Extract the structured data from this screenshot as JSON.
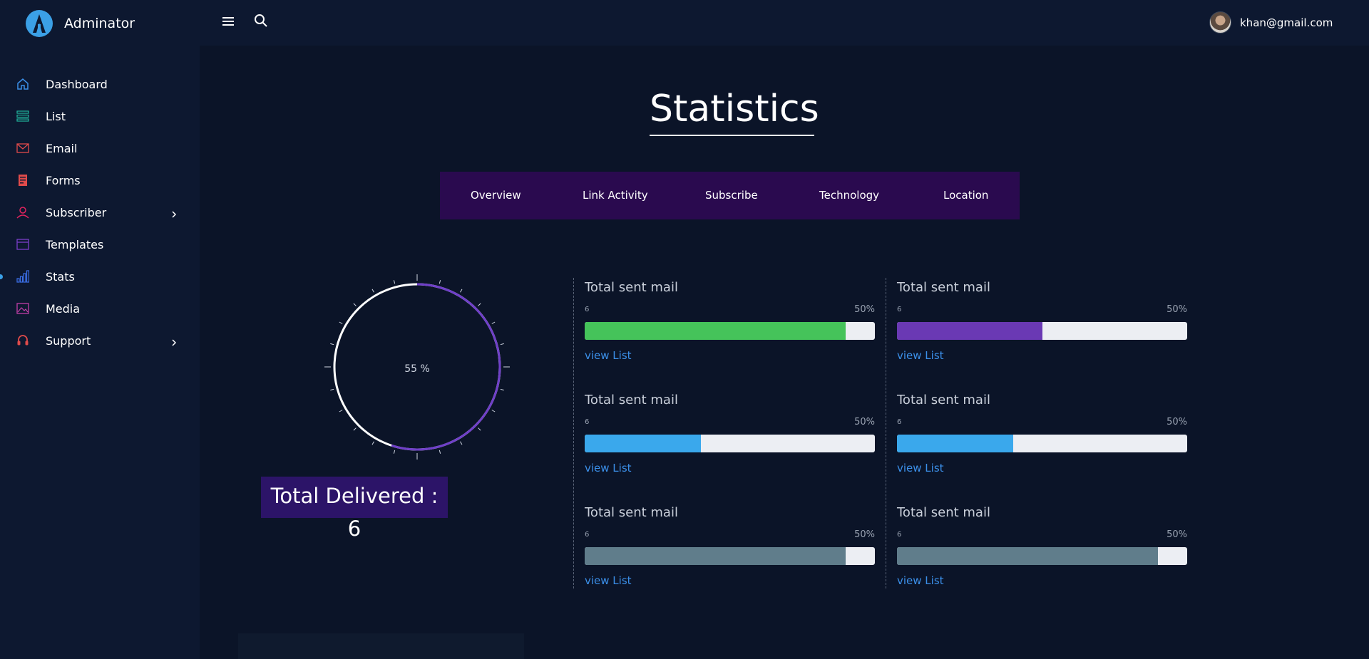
{
  "brand": {
    "name": "Adminator",
    "accent": "#3ba0e6"
  },
  "header": {
    "user_email": "khan@gmail.com"
  },
  "sidebar": {
    "items": [
      {
        "label": "Dashboard",
        "icon": "home-icon",
        "color": "#3b8fe8"
      },
      {
        "label": "List",
        "icon": "list-icon",
        "color": "#1fb59d"
      },
      {
        "label": "Email",
        "icon": "mail-icon",
        "color": "#e04b4b"
      },
      {
        "label": "Forms",
        "icon": "form-icon",
        "color": "#e04b4b"
      },
      {
        "label": "Subscriber",
        "icon": "user-icon",
        "color": "#e0245e",
        "has_submenu": true
      },
      {
        "label": "Templates",
        "icon": "window-icon",
        "color": "#7a3fc9"
      },
      {
        "label": "Stats",
        "icon": "bar-chart-icon",
        "color": "#3b6fe8",
        "active": true
      },
      {
        "label": "Media",
        "icon": "image-icon",
        "color": "#c23fa8"
      },
      {
        "label": "Support",
        "icon": "headset-icon",
        "color": "#e04b4b",
        "has_submenu": true
      }
    ]
  },
  "main": {
    "title": "Statistics",
    "tabs": [
      "Overview",
      "Link Activity",
      "Subscribe",
      "Technology",
      "Location"
    ],
    "gauge": {
      "label": "55 %",
      "value": 0.55,
      "color": "#6f3fc9"
    },
    "delivered": "Total Delivered : 6",
    "stats": [
      {
        "title": "Total sent mail",
        "count": "6",
        "percent": "50%",
        "fill": 0.9,
        "color": "#45c35a",
        "link": "view List"
      },
      {
        "title": "Total sent mail",
        "count": "6",
        "percent": "50%",
        "fill": 0.5,
        "color": "#6a39b4",
        "link": "view List"
      },
      {
        "title": "Total sent mail",
        "count": "6",
        "percent": "50%",
        "fill": 0.4,
        "color": "#3aa8ec",
        "link": "view List"
      },
      {
        "title": "Total sent mail",
        "count": "6",
        "percent": "50%",
        "fill": 0.4,
        "color": "#3aa8ec",
        "link": "view List"
      },
      {
        "title": "Total sent mail",
        "count": "6",
        "percent": "50%",
        "fill": 0.9,
        "color": "#607d8b",
        "link": "view List"
      },
      {
        "title": "Total sent mail",
        "count": "6",
        "percent": "50%",
        "fill": 0.9,
        "color": "#607d8b",
        "link": "view List"
      }
    ]
  }
}
